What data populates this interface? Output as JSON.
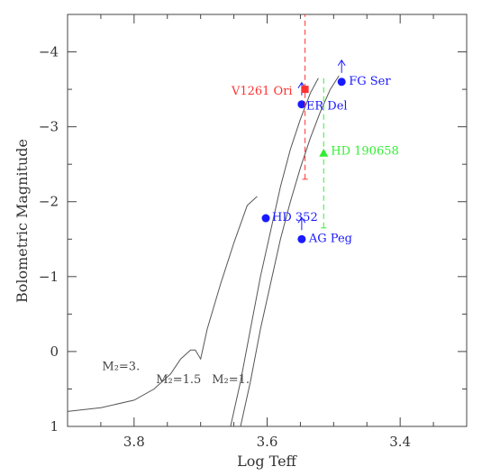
{
  "chart_data": {
    "type": "scatter",
    "xlabel": "Log Teff",
    "ylabel": "Bolometric Magnitude",
    "xlim": [
      3.9,
      3.3
    ],
    "ylim": [
      1,
      -4.5
    ],
    "x_ticks": [
      {
        "value": 3.8,
        "label": "3.8"
      },
      {
        "value": 3.6,
        "label": "3.6"
      },
      {
        "value": 3.4,
        "label": "3.4"
      }
    ],
    "y_ticks": [
      {
        "value": -4,
        "label": "−4"
      },
      {
        "value": -3,
        "label": "−3"
      },
      {
        "value": -2,
        "label": "−2"
      },
      {
        "value": -1,
        "label": "−1"
      },
      {
        "value": 0,
        "label": "0"
      },
      {
        "value": 1,
        "label": "1"
      }
    ],
    "colors": {
      "blue": "#1a1aff",
      "red": "#ff3333",
      "green": "#33ee33",
      "track": "#555555",
      "axis": "#444444"
    },
    "tracks": [
      {
        "label": "M₂=3.",
        "points": [
          [
            3.9,
            0.8
          ],
          [
            3.85,
            0.75
          ],
          [
            3.8,
            0.65
          ],
          [
            3.77,
            0.5
          ],
          [
            3.745,
            0.3
          ],
          [
            3.73,
            0.1
          ],
          [
            3.715,
            -0.02
          ],
          [
            3.708,
            -0.02
          ],
          [
            3.7,
            0.1
          ],
          [
            3.69,
            -0.3
          ],
          [
            3.67,
            -0.9
          ],
          [
            3.65,
            -1.45
          ],
          [
            3.63,
            -1.95
          ],
          [
            3.615,
            -2.07
          ]
        ]
      },
      {
        "label": "M₂=1.5",
        "points": [
          [
            3.655,
            1
          ],
          [
            3.64,
            0.4
          ],
          [
            3.625,
            -0.3
          ],
          [
            3.61,
            -1.0
          ],
          [
            3.595,
            -1.6
          ],
          [
            3.58,
            -2.2
          ],
          [
            3.565,
            -2.7
          ],
          [
            3.55,
            -3.1
          ],
          [
            3.535,
            -3.45
          ],
          [
            3.523,
            -3.65
          ]
        ]
      },
      {
        "label": "M₂=1.",
        "points": [
          [
            3.64,
            1
          ],
          [
            3.625,
            0.4
          ],
          [
            3.61,
            -0.3
          ],
          [
            3.595,
            -0.9
          ],
          [
            3.58,
            -1.5
          ],
          [
            3.565,
            -2.0
          ],
          [
            3.55,
            -2.45
          ],
          [
            3.535,
            -2.85
          ],
          [
            3.52,
            -3.2
          ],
          [
            3.505,
            -3.5
          ],
          [
            3.492,
            -3.68
          ]
        ]
      }
    ],
    "points": [
      {
        "label": "FG Ser",
        "x": 3.488,
        "y": -3.6,
        "marker": "circle",
        "color": "blue",
        "upper_arrow": true
      },
      {
        "label": "ER Del",
        "x": 3.548,
        "y": -3.3,
        "marker": "circle",
        "color": "blue",
        "upper_arrow": true
      },
      {
        "label": "V1261 Ori",
        "x": 3.543,
        "y": -3.5,
        "marker": "square",
        "color": "red",
        "err_low": -2.3,
        "err_high": -4.5
      },
      {
        "label": "HD 190658",
        "x": 3.515,
        "y": -2.65,
        "marker": "triangle",
        "color": "green",
        "err_low": -1.65,
        "err_high": -3.65
      },
      {
        "label": "HD 352",
        "x": 3.602,
        "y": -1.78,
        "marker": "circle",
        "color": "blue"
      },
      {
        "label": "AG Peg",
        "x": 3.548,
        "y": -1.5,
        "marker": "circle",
        "color": "blue",
        "upper_arrow": true
      }
    ]
  }
}
